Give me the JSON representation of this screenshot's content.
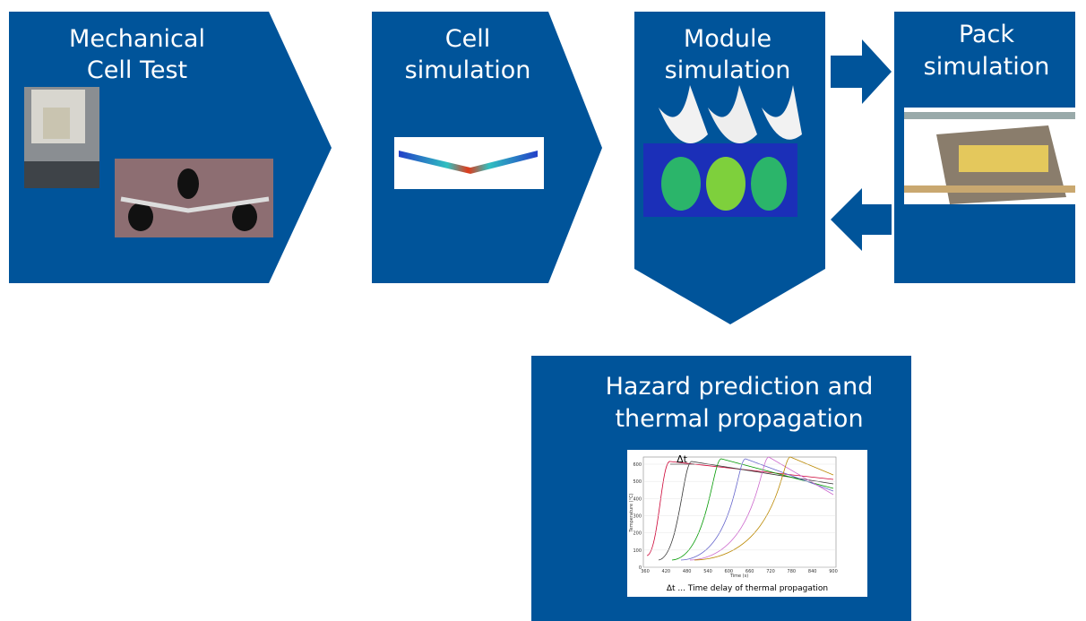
{
  "steps": [
    {
      "title": [
        "Mechanical",
        "Cell Test"
      ]
    },
    {
      "title": [
        "Cell",
        "simulation"
      ]
    },
    {
      "title": [
        "Module",
        "simulation"
      ]
    },
    {
      "title": [
        "Pack",
        "simulation"
      ]
    }
  ],
  "hazard": {
    "title": [
      "Hazard prediction and",
      "thermal propagation"
    ],
    "plot": {
      "marker": "Δt",
      "y_label": "Temperature (°C)",
      "x_label": "Time (s)",
      "yticks": [
        "0",
        "100",
        "200",
        "300",
        "400",
        "500",
        "600"
      ],
      "xticks": [
        "360",
        "420",
        "480",
        "540",
        "600",
        "660",
        "720",
        "780",
        "840",
        "900"
      ],
      "caption": "Δt ...  Time delay of thermal propagation"
    }
  }
}
